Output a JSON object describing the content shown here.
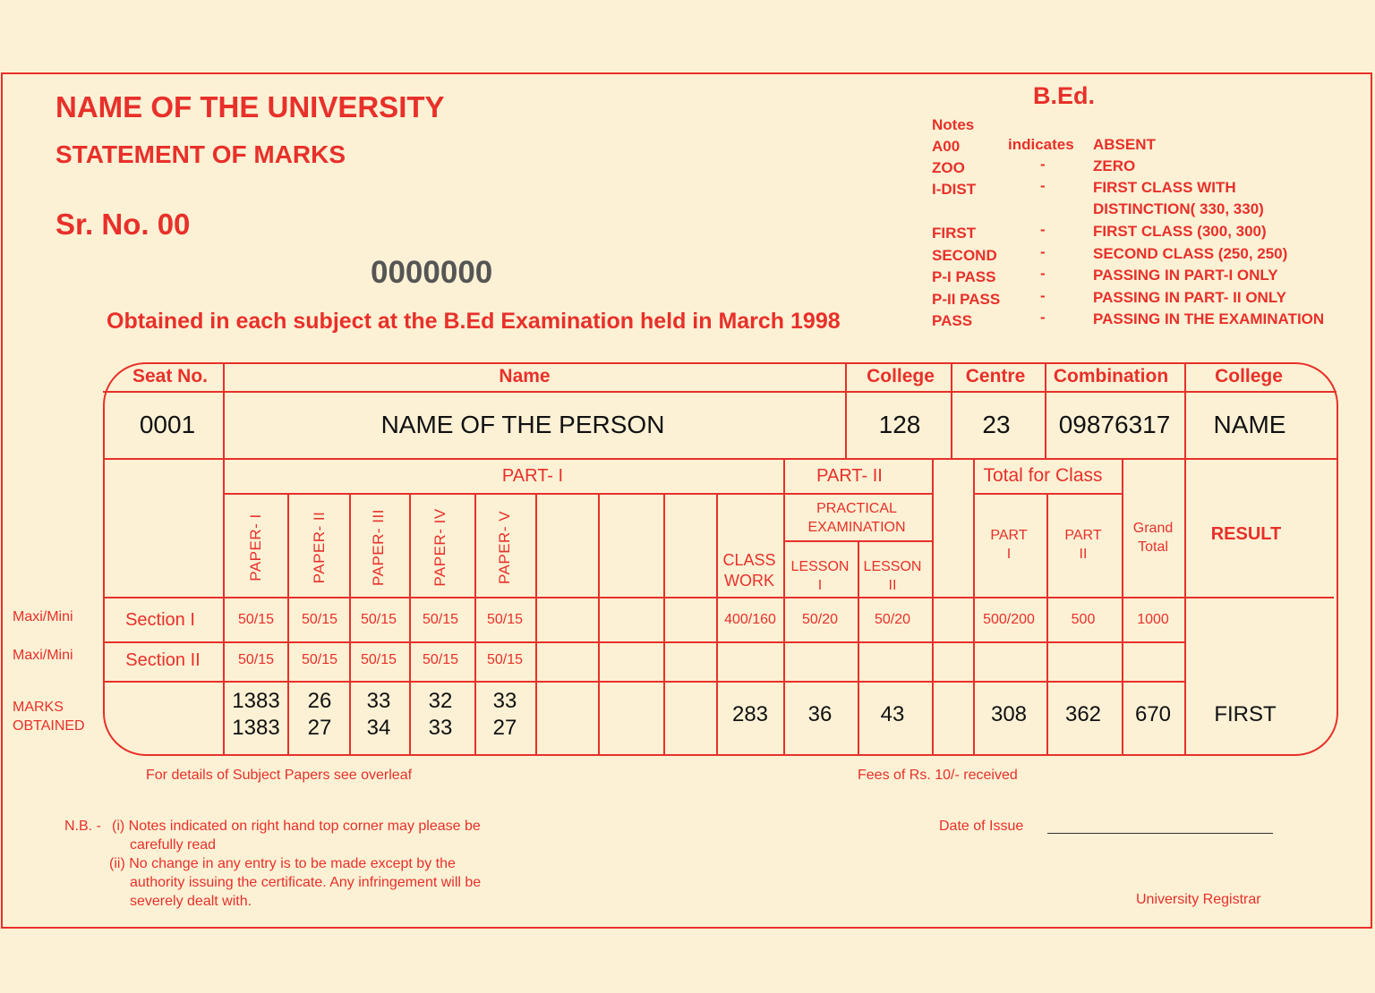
{
  "header": {
    "university": "NAME OF THE UNIVERSITY",
    "statement": "STATEMENT OF MARKS",
    "sr_no": "Sr. No. 00",
    "number": "0000000",
    "obtained": "Obtained in each subject at the B.Ed Examination held in March 1998",
    "degree": "B.Ed."
  },
  "notes": {
    "title": "Notes",
    "indicates": "indicates",
    "dash": "-",
    "items": [
      {
        "code": "A00",
        "meaning": "ABSENT"
      },
      {
        "code": "ZOO",
        "meaning": "ZERO"
      },
      {
        "code": "I-DIST",
        "meaning": "FIRST CLASS WITH",
        "meaning2": "DISTINCTION( 330, 330)"
      },
      {
        "code": "FIRST",
        "meaning": "FIRST CLASS (300, 300)"
      },
      {
        "code": "SECOND",
        "meaning": "SECOND CLASS (250, 250)"
      },
      {
        "code": "P-I PASS",
        "meaning": "PASSING IN PART-I ONLY"
      },
      {
        "code": "P-II PASS",
        "meaning": "PASSING IN PART- II ONLY"
      },
      {
        "code": "PASS",
        "meaning": "PASSING IN THE EXAMINATION"
      }
    ]
  },
  "table": {
    "headers": {
      "seat": "Seat No.",
      "name": "Name",
      "college": "College",
      "centre": "Centre",
      "combination": "Combination",
      "college2": "College"
    },
    "values": {
      "seat": "0001",
      "name": "NAME OF THE PERSON",
      "college": "128",
      "centre": "23",
      "combination": "09876317",
      "college2": "NAME"
    },
    "part1": "PART- I",
    "part2": "PART- II",
    "papers": [
      "PAPER- I",
      "PAPER- II",
      "PAPER- III",
      "PAPER- IV",
      "PAPER- V"
    ],
    "class_work": [
      "CLASS",
      "WORK"
    ],
    "practical": [
      "PRACTICAL",
      "EXAMINATION"
    ],
    "lesson1": [
      "LESSON",
      "I"
    ],
    "lesson2": [
      "LESSON",
      "II"
    ],
    "total_for_class": "Total for Class",
    "part_i": [
      "PART",
      "I"
    ],
    "part_ii": [
      "PART",
      "II"
    ],
    "grand_total": [
      "Grand",
      "Total"
    ],
    "result": "RESULT",
    "row_labels": {
      "maxi1": "Maxi/Mini",
      "maxi2": "Maxi/Mini",
      "marks": [
        "MARKS",
        "OBTAINED"
      ],
      "section1": "Section I",
      "section2": "Section II"
    },
    "section1": {
      "papers": [
        "50/15",
        "50/15",
        "50/15",
        "50/15",
        "50/15"
      ],
      "class_work": "400/160",
      "lesson1": "50/20",
      "lesson2": "50/20",
      "part1": "500/200",
      "part2": "500",
      "grand": "1000"
    },
    "section2": {
      "papers": [
        "50/15",
        "50/15",
        "50/15",
        "50/15",
        "50/15"
      ]
    },
    "marks": {
      "papers": [
        [
          "1383",
          "1383"
        ],
        [
          "26",
          "27"
        ],
        [
          "33",
          "34"
        ],
        [
          "32",
          "33"
        ],
        [
          "33",
          "27"
        ]
      ],
      "class_work": "283",
      "lesson1": "36",
      "lesson2": "43",
      "part1": "308",
      "part2": "362",
      "grand": "670",
      "result": "FIRST"
    }
  },
  "footer": {
    "details": "For details of Subject Papers see overleaf",
    "fees": "Fees of Rs. 10/- received",
    "nb": "N.B. -",
    "note1a": "(i) Notes indicated on right hand top corner may please be",
    "note1b": "carefully read",
    "note2a": "(ii) No change in any entry is to be made except by the",
    "note2b": "authority issuing the certificate. Any infringement will be",
    "note2c": "severely dealt with.",
    "date_label": "Date of Issue",
    "registrar": "University Registrar"
  },
  "colors": {
    "background": "#fcf1d5",
    "ink": "#e8302a",
    "text": "#111111"
  }
}
